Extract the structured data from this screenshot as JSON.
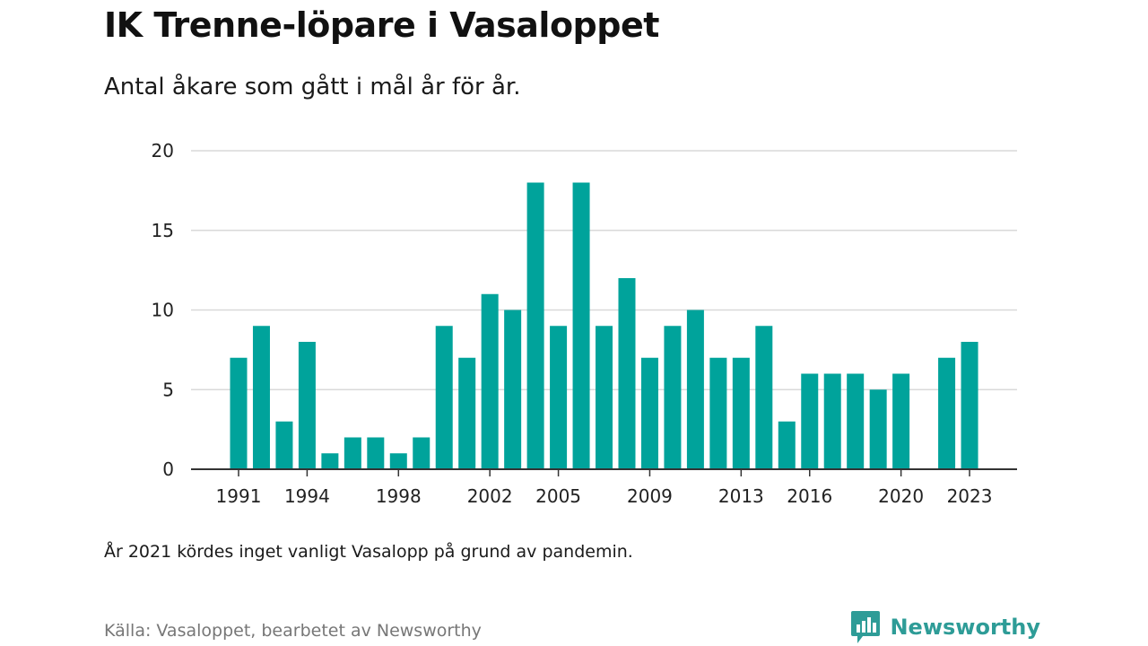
{
  "header": {
    "title": "IK Trenne-löpare i Vasaloppet",
    "subtitle": "Antal åkare som gått i mål år för år."
  },
  "footer": {
    "note": "År 2021 kördes inget vanligt Vasalopp på grund av pandemin.",
    "source": "Källa: Vasaloppet, bearbetet av Newsworthy",
    "brand": "Newsworthy",
    "brand_icon": "bar-chart-speech-bubble-icon"
  },
  "colors": {
    "bar": "#00a39b",
    "grid": "#d9d9d9",
    "axis": "#333333",
    "brand": "#2e9c97"
  },
  "chart_data": {
    "type": "bar",
    "title": "IK Trenne-löpare i Vasaloppet",
    "subtitle": "Antal åkare som gått i mål år för år.",
    "x": [
      1991,
      1992,
      1993,
      1994,
      1995,
      1996,
      1997,
      1998,
      1999,
      2000,
      2001,
      2002,
      2003,
      2004,
      2005,
      2006,
      2007,
      2008,
      2009,
      2010,
      2011,
      2012,
      2013,
      2014,
      2015,
      2016,
      2017,
      2018,
      2019,
      2020,
      2021,
      2022,
      2023
    ],
    "values": [
      7,
      9,
      3,
      8,
      1,
      2,
      2,
      1,
      2,
      9,
      7,
      11,
      10,
      18,
      9,
      18,
      9,
      12,
      7,
      9,
      10,
      7,
      7,
      9,
      3,
      6,
      6,
      6,
      5,
      6,
      null,
      7,
      8
    ],
    "x_tick_labels": [
      1991,
      1994,
      1998,
      2002,
      2005,
      2009,
      2013,
      2016,
      2020,
      2023
    ],
    "y_ticks": [
      0,
      5,
      10,
      15,
      20
    ],
    "ylim": [
      0,
      20
    ],
    "xlabel": "",
    "ylabel": "",
    "grid": true,
    "legend": "none"
  }
}
